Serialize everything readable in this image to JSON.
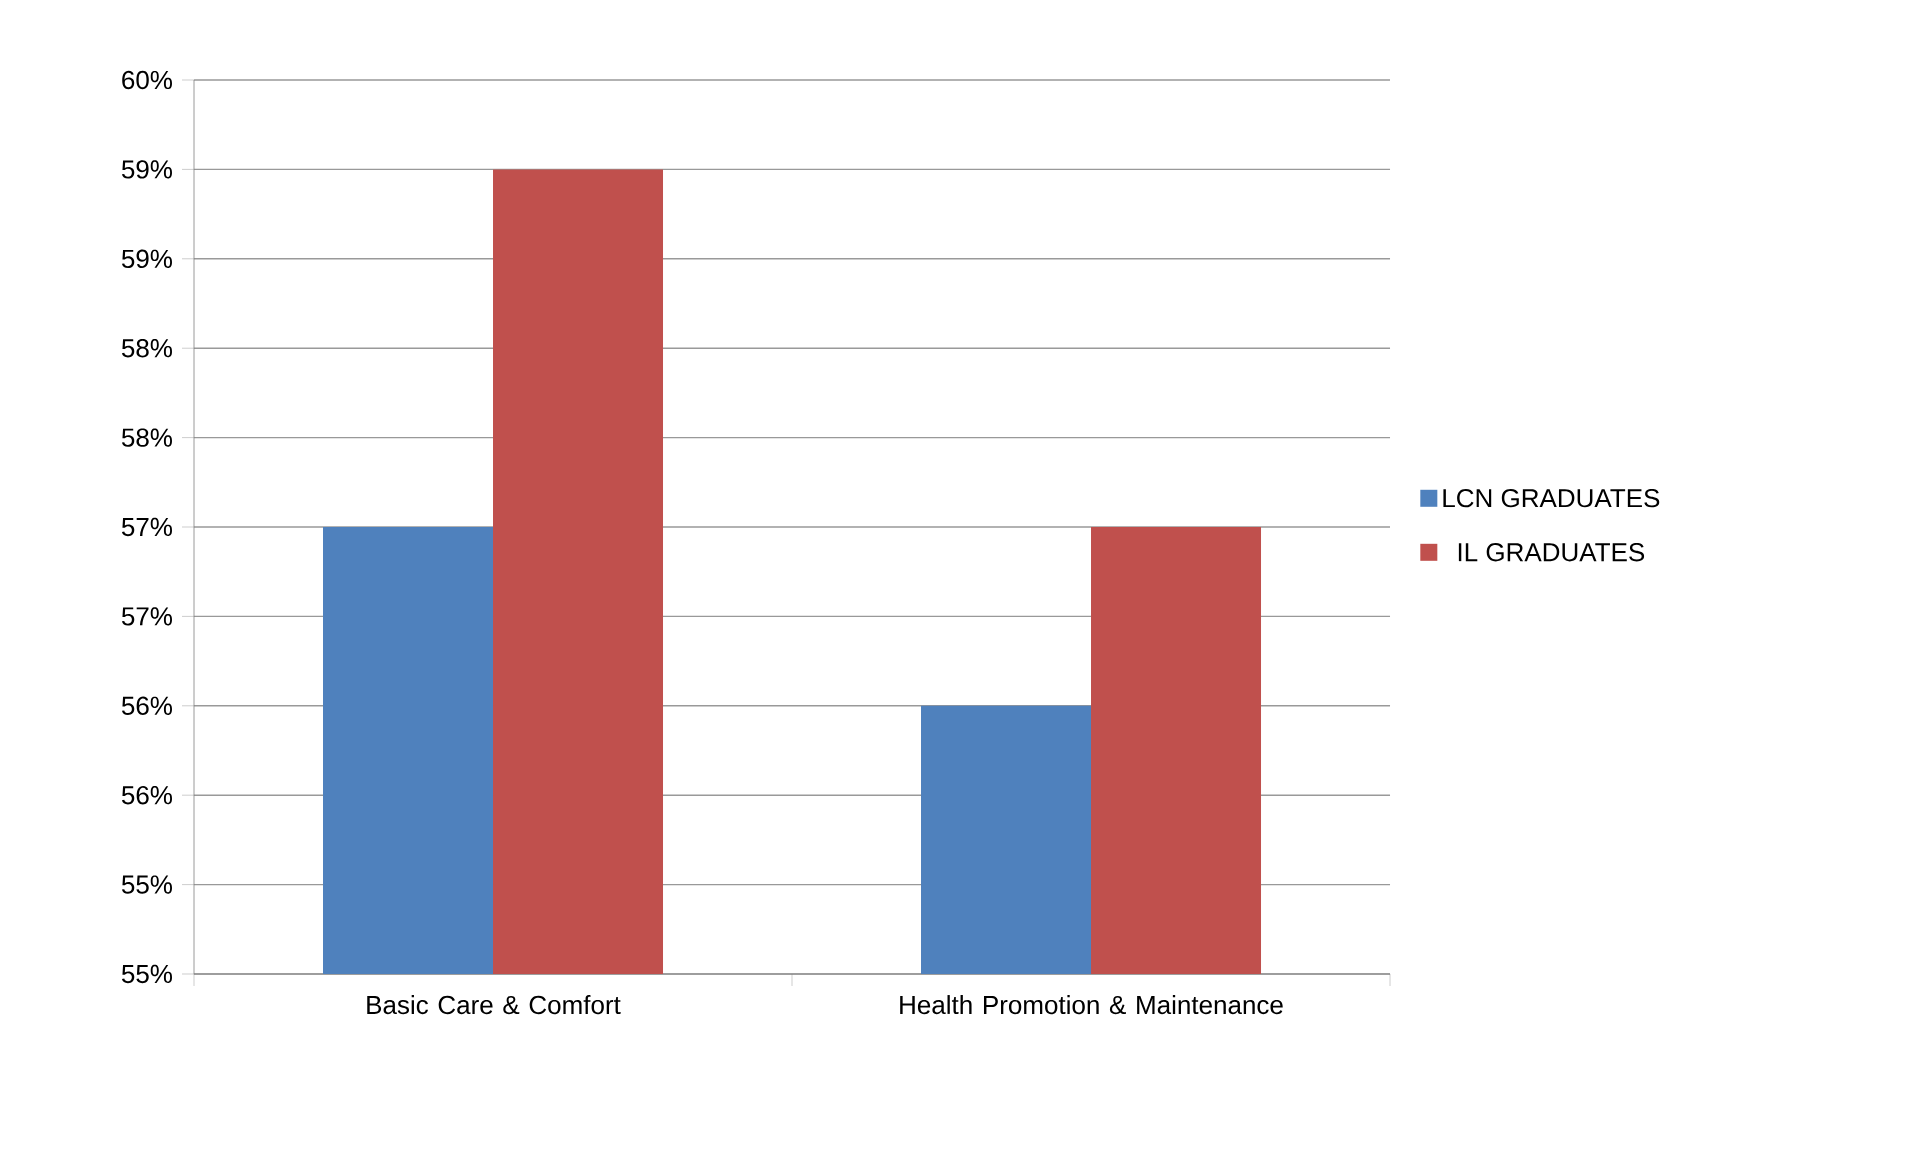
{
  "chart_data": {
    "type": "bar",
    "categories": [
      "Basic Care & Comfort",
      "Health Promotion & Maintenance"
    ],
    "series": [
      {
        "name": "LCN GRADUATES",
        "color": "#4f81bd",
        "values": [
          57.0,
          56.0
        ]
      },
      {
        "name": "IL GRADUATES",
        "color": "#c0504d",
        "values": [
          59.0,
          57.0
        ]
      }
    ],
    "ylim": [
      54.5,
      59.5
    ],
    "yticks": [
      {
        "value": 54.5,
        "label": "55%"
      },
      {
        "value": 55.0,
        "label": "55%"
      },
      {
        "value": 55.5,
        "label": "56%"
      },
      {
        "value": 56.0,
        "label": "56%"
      },
      {
        "value": 56.5,
        "label": "57%"
      },
      {
        "value": 57.0,
        "label": "57%"
      },
      {
        "value": 57.5,
        "label": "58%"
      },
      {
        "value": 58.0,
        "label": "58%"
      },
      {
        "value": 58.5,
        "label": "59%"
      },
      {
        "value": 59.0,
        "label": "59%"
      },
      {
        "value": 59.5,
        "label": "60%"
      }
    ],
    "grid": "y",
    "legend": "right"
  }
}
